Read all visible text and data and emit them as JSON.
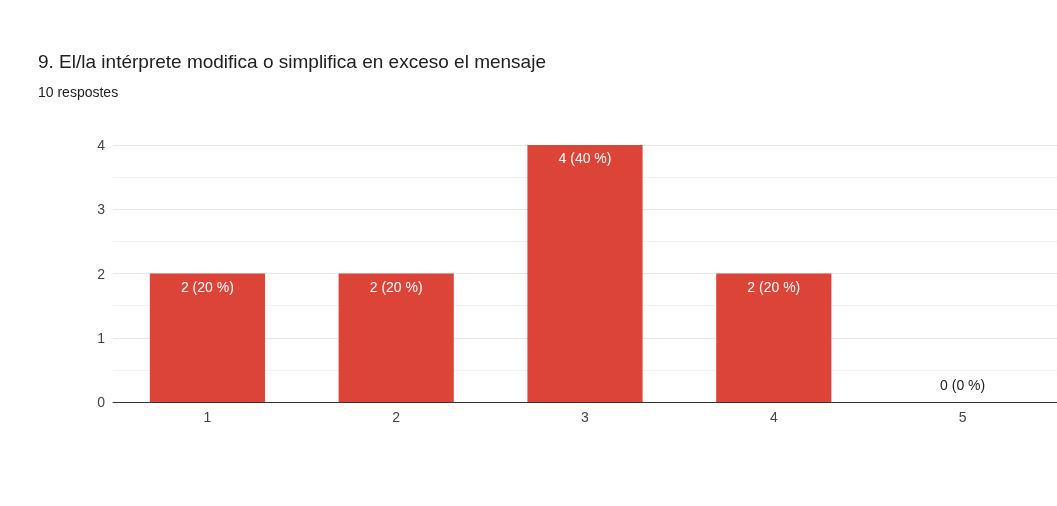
{
  "chart_data": {
    "type": "bar",
    "title": "9. El/la intérprete modifica o simplifica en exceso el mensaje",
    "subtitle": "10 respostes",
    "categories": [
      "1",
      "2",
      "3",
      "4",
      "5"
    ],
    "values": [
      2,
      2,
      4,
      2,
      0
    ],
    "value_labels": [
      "2 (20 %)",
      "2 (20 %)",
      "4 (40 %)",
      "2 (20 %)",
      "0 (0 %)"
    ],
    "color": "#db4437",
    "ylim": [
      0,
      4
    ],
    "yticks": [
      0,
      1,
      2,
      3,
      4
    ],
    "grid": "y"
  }
}
